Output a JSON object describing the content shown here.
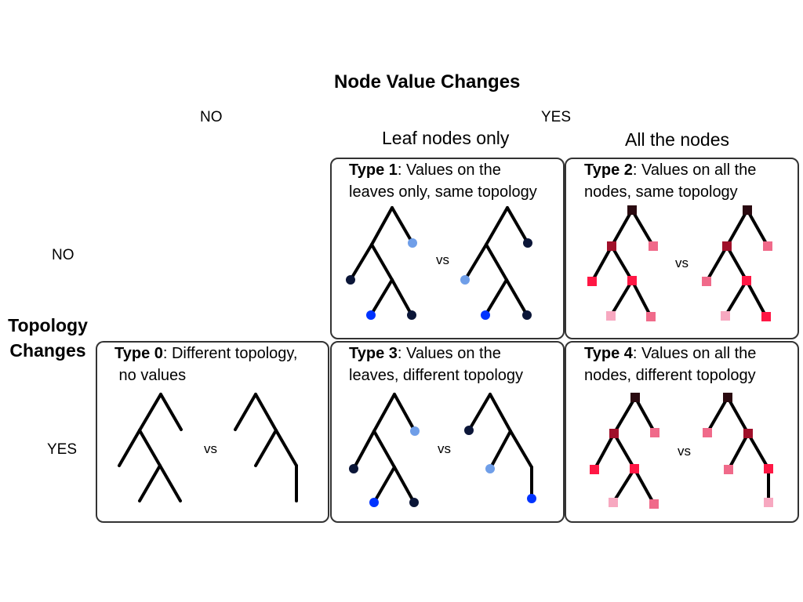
{
  "header": {
    "title": "Node Value Changes",
    "no": "NO",
    "yes": "YES",
    "leaf_only": "Leaf nodes only",
    "all_nodes": "All the nodes"
  },
  "rows": {
    "title_line1": "Topology",
    "title_line2": "Changes",
    "no": "NO",
    "yes": "YES"
  },
  "boxes": {
    "type0": {
      "bold": "Type 0",
      "rest": ": Different topology,",
      "line2": " no values"
    },
    "type1": {
      "bold": "Type 1",
      "rest": ": Values on the",
      "line2": "leaves only, same topology"
    },
    "type2": {
      "bold": "Type 2",
      "rest": ": Values on all the",
      "line2": "nodes, same topology"
    },
    "type3": {
      "bold": "Type 3",
      "rest": ": Values on the",
      "line2": "leaves, different topology"
    },
    "type4": {
      "bold": "Type 4",
      "rest": ": Values on all the",
      "line2": "nodes, different topology"
    }
  },
  "vs_label": "vs",
  "colors": {
    "branch": "#000000",
    "blue_dark": "#0b1638",
    "blue_bright": "#0033ff",
    "blue_light": "#6f9ee8",
    "red_darkest": "#2a0a10",
    "red_dark": "#a0102a",
    "red_bright": "#ff1744",
    "pink_mid": "#f06a8a",
    "pink_light": "#f7a8c0"
  }
}
